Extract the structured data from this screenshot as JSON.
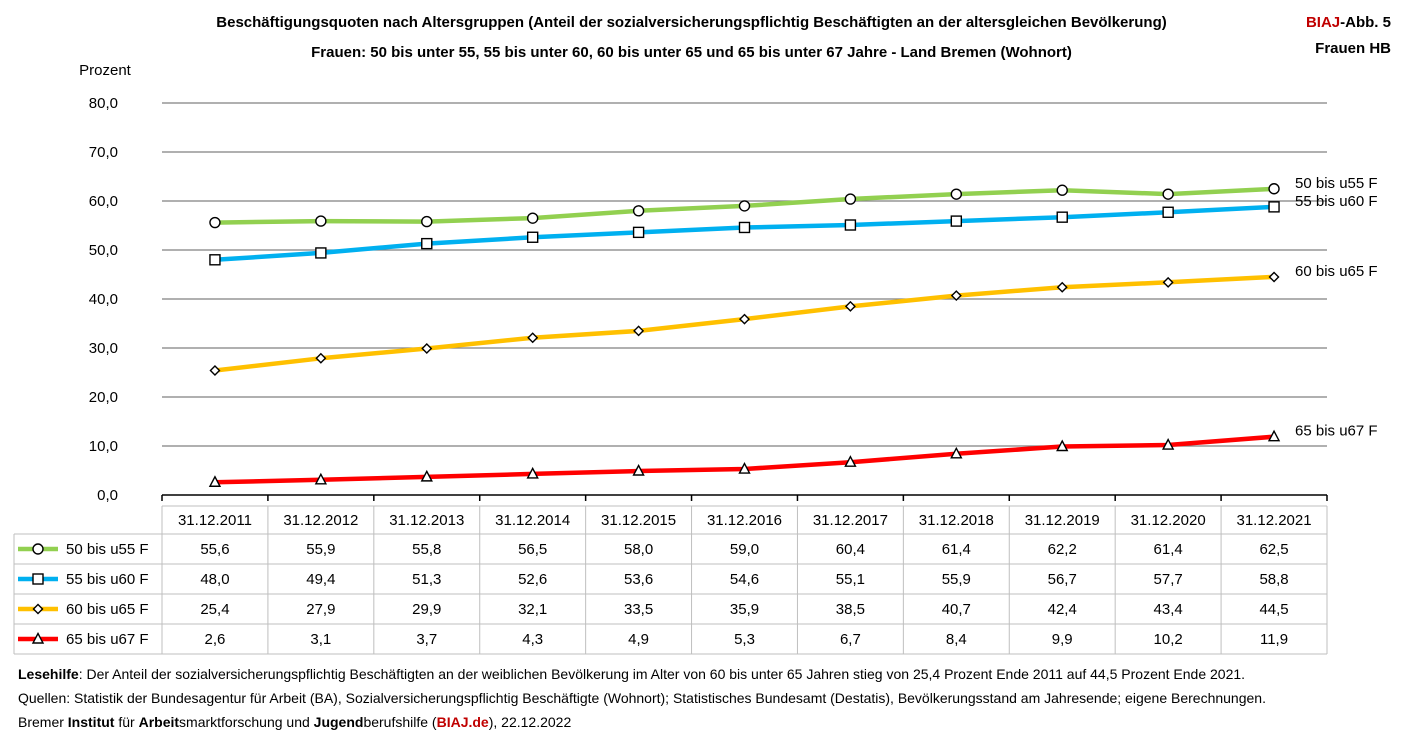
{
  "header": {
    "title_line1": "Beschäftigungsquoten nach Altersgruppen (Anteil der sozialversicherungspflichtig Beschäftigten an der altersgleichen Bevölkerung)",
    "title_line2": "Frauen: 50 bis unter 55, 55 bis unter 60, 60 bis unter 65 und 65 bis unter 67 Jahre - Land Bremen (Wohnort)",
    "badge_brand": "BIAJ",
    "badge_rest": "-Abb. 5",
    "badge_sub": "Frauen HB"
  },
  "colors": {
    "brand": "#c00000",
    "grid": "#808080",
    "table_border": "#bfbfbf"
  },
  "chart_data": {
    "type": "line",
    "ylabel": "Prozent",
    "ylim": [
      0,
      80
    ],
    "yticks": [
      "0,0",
      "10,0",
      "20,0",
      "30,0",
      "40,0",
      "50,0",
      "60,0",
      "70,0",
      "80,0"
    ],
    "grid": true,
    "categories": [
      "31.12.2011",
      "31.12.2012",
      "31.12.2013",
      "31.12.2014",
      "31.12.2015",
      "31.12.2016",
      "31.12.2017",
      "31.12.2018",
      "31.12.2019",
      "31.12.2020",
      "31.12.2021"
    ],
    "series": [
      {
        "name": "50 bis u55 F",
        "color": "#92d050",
        "marker": "circle",
        "values": [
          55.6,
          55.9,
          55.8,
          56.5,
          58.0,
          59.0,
          60.4,
          61.4,
          62.2,
          61.4,
          62.5
        ],
        "labels": [
          "55,6",
          "55,9",
          "55,8",
          "56,5",
          "58,0",
          "59,0",
          "60,4",
          "61,4",
          "62,2",
          "61,4",
          "62,5"
        ]
      },
      {
        "name": "55 bis u60 F",
        "color": "#00b0f0",
        "marker": "square",
        "values": [
          48.0,
          49.4,
          51.3,
          52.6,
          53.6,
          54.6,
          55.1,
          55.9,
          56.7,
          57.7,
          58.8
        ],
        "labels": [
          "48,0",
          "49,4",
          "51,3",
          "52,6",
          "53,6",
          "54,6",
          "55,1",
          "55,9",
          "56,7",
          "57,7",
          "58,8"
        ]
      },
      {
        "name": "60 bis u65 F",
        "color": "#ffc000",
        "marker": "diamond",
        "values": [
          25.4,
          27.9,
          29.9,
          32.1,
          33.5,
          35.9,
          38.5,
          40.7,
          42.4,
          43.4,
          44.5
        ],
        "labels": [
          "25,4",
          "27,9",
          "29,9",
          "32,1",
          "33,5",
          "35,9",
          "38,5",
          "40,7",
          "42,4",
          "43,4",
          "44,5"
        ]
      },
      {
        "name": "65 bis u67 F",
        "color": "#ff0000",
        "marker": "triangle",
        "values": [
          2.6,
          3.1,
          3.7,
          4.3,
          4.9,
          5.3,
          6.7,
          8.4,
          9.9,
          10.2,
          11.9
        ],
        "labels": [
          "2,6",
          "3,1",
          "3,7",
          "4,3",
          "4,9",
          "5,3",
          "6,7",
          "8,4",
          "9,9",
          "10,2",
          "11,9"
        ]
      }
    ]
  },
  "footer": {
    "lesehilfe_label": "Lesehilfe",
    "lesehilfe_text": ": Der Anteil der sozialversicherungspflichtig Beschäftigten an der weiblichen Bevölkerung im Alter von 60 bis unter 65 Jahren stieg von 25,4 Prozent Ende 2011 auf 44,5 Prozent Ende 2021.",
    "sources": "Quellen: Statistik der Bundesagentur für Arbeit (BA), Sozialversicherungspflichtig Beschäftigte (Wohnort); Statistisches Bundesamt (Destatis), Bevölkerungsstand am Jahresende; eigene Berechnungen.",
    "org_1": "Bremer ",
    "org_2": "Institut",
    "org_3": " für ",
    "org_4": "Arbeit",
    "org_5": "smarktforschung und ",
    "org_6": "Jugend",
    "org_7": "berufshilfe (",
    "org_link": "BIAJ.de",
    "org_8": "), 22.12.2022"
  }
}
